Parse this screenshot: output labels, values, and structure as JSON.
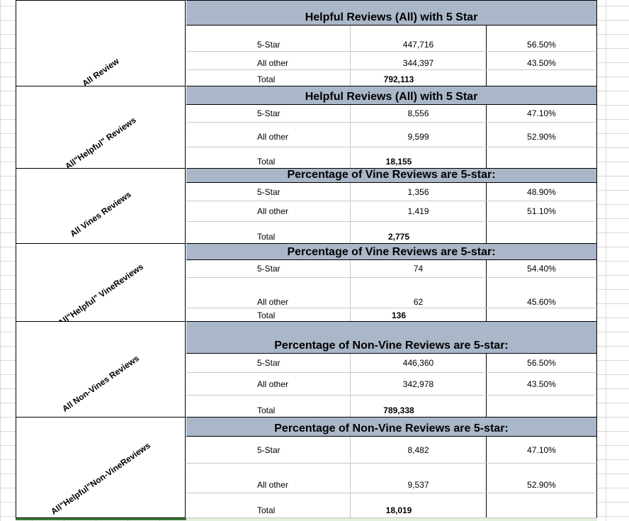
{
  "blocks": [
    {
      "label": "All Review",
      "title": "Helpful Reviews (All) with 5 Star",
      "rows": [
        {
          "label": "5-Star",
          "count": "447,716",
          "pct": "56.50%"
        },
        {
          "label": "All other",
          "count": "344,397",
          "pct": "43.50%"
        },
        {
          "label": "Total",
          "count": "792,113",
          "pct": ""
        }
      ]
    },
    {
      "label": "All\"Helpful\" Reviews",
      "title": "Helpful Reviews (All) with 5 Star",
      "rows": [
        {
          "label": "5-Star",
          "count": "8,556",
          "pct": "47.10%"
        },
        {
          "label": "All other",
          "count": "9,599",
          "pct": "52.90%"
        },
        {
          "label": "Total",
          "count": "18,155",
          "pct": ""
        }
      ]
    },
    {
      "label": "All Vines Reviews",
      "title": "Percentage of Vine Reviews are 5-star:",
      "rows": [
        {
          "label": "5-Star",
          "count": "1,356",
          "pct": "48.90%"
        },
        {
          "label": "All other",
          "count": "1,419",
          "pct": "51.10%"
        },
        {
          "label": "Total",
          "count": "2,775",
          "pct": ""
        }
      ]
    },
    {
      "label": "All\"Helpful\" VineReviews",
      "title": "Percentage of Vine Reviews are 5-star:",
      "rows": [
        {
          "label": "5-Star",
          "count": "74",
          "pct": "54.40%"
        },
        {
          "label": "All other",
          "count": "62",
          "pct": "45.60%"
        },
        {
          "label": "Total",
          "count": "136",
          "pct": ""
        }
      ]
    },
    {
      "label": "All Non-Vines Reviews",
      "title": "Percentage of Non-Vine Reviews are 5-star:",
      "rows": [
        {
          "label": "5-Star",
          "count": "446,360",
          "pct": "56.50%"
        },
        {
          "label": "All other",
          "count": "342,978",
          "pct": "43.50%"
        },
        {
          "label": "Total",
          "count": "789,338",
          "pct": ""
        }
      ]
    },
    {
      "label": "All\"Helpful\"Non-VineReviews",
      "title": "Percentage of Non-Vine Reviews are 5-star:",
      "rows": [
        {
          "label": "5-Star",
          "count": "8,482",
          "pct": "47.10%"
        },
        {
          "label": "All other",
          "count": "9,537",
          "pct": "52.90%"
        },
        {
          "label": "Total",
          "count": "18,019",
          "pct": ""
        }
      ]
    }
  ]
}
